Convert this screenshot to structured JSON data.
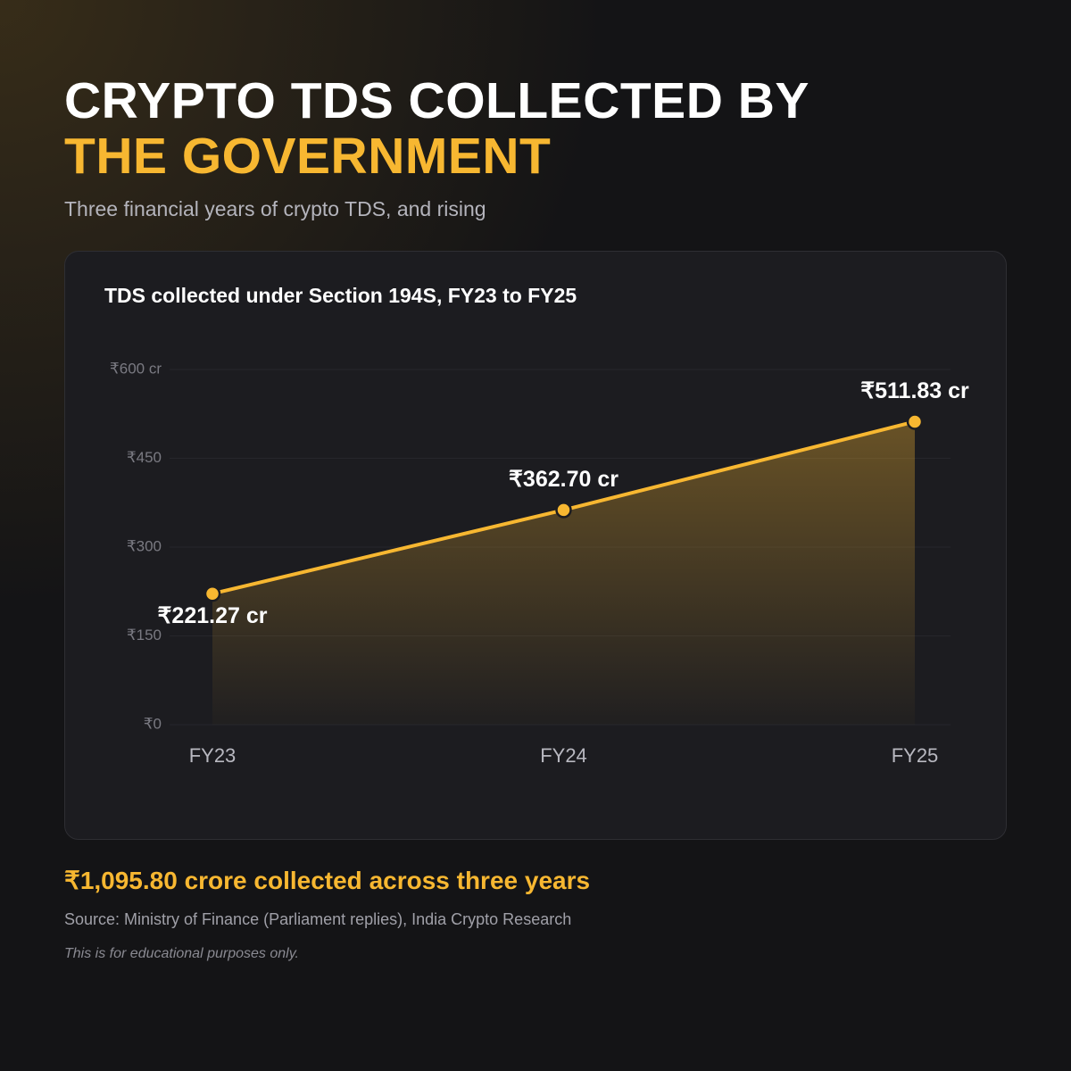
{
  "chart_data": {
    "type": "line",
    "title_lines": [
      "CRYPTO TDS COLLECTED BY",
      "THE GOVERNMENT"
    ],
    "subtitle": "Three financial years of crypto TDS, and rising",
    "chart_title": "TDS collected under Section 194S, FY23 to FY25",
    "categories": [
      "FY23",
      "FY24",
      "FY25"
    ],
    "values": [
      221.27,
      362.7,
      511.83
    ],
    "value_labels": [
      "₹221.27 cr",
      "₹362.70 cr",
      "₹511.83 cr"
    ],
    "color": "#f7b731",
    "ylim": [
      0,
      600
    ],
    "yticks": [
      {
        "value": 0,
        "label": "₹0"
      },
      {
        "value": 150,
        "label": "₹150"
      },
      {
        "value": 300,
        "label": "₹300"
      },
      {
        "value": 450,
        "label": "₹450"
      },
      {
        "value": 600,
        "label": "₹600 cr"
      }
    ],
    "grid": true,
    "summary": "₹1,095.80 crore collected across three years",
    "source": "Source: Ministry of Finance (Parliament replies), India Crypto Research",
    "disclaimer": "This is for educational purposes only."
  }
}
